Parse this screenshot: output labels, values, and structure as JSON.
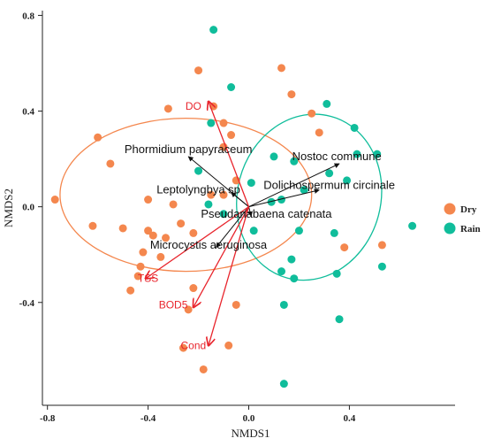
{
  "chart_data": {
    "type": "scatter",
    "xlabel": "NMDS1",
    "ylabel": "NMDS2",
    "xlim": [
      -0.82,
      0.82
    ],
    "ylim": [
      -0.83,
      0.82
    ],
    "x_ticks": [
      -0.8,
      -0.4,
      0.0,
      0.4
    ],
    "x_tick_labels": [
      "-0.8",
      "-0.4",
      "0.0",
      "0.4"
    ],
    "y_ticks": [
      0.8,
      0.4,
      0.0,
      -0.4
    ],
    "y_tick_labels": [
      "0.8",
      "0.4",
      "0.0",
      "-0.4"
    ],
    "grid": false,
    "legend_position": "right",
    "series": [
      {
        "name": "Dry",
        "color": "#f4874e",
        "points": [
          [
            -0.77,
            0.03
          ],
          [
            -0.6,
            0.29
          ],
          [
            -0.55,
            0.18
          ],
          [
            -0.62,
            -0.08
          ],
          [
            -0.5,
            -0.09
          ],
          [
            -0.4,
            -0.1
          ],
          [
            -0.38,
            -0.12
          ],
          [
            -0.33,
            -0.13
          ],
          [
            -0.42,
            -0.19
          ],
          [
            -0.35,
            -0.21
          ],
          [
            -0.43,
            -0.25
          ],
          [
            -0.44,
            -0.29
          ],
          [
            -0.47,
            -0.35
          ],
          [
            -0.4,
            0.03
          ],
          [
            -0.3,
            0.01
          ],
          [
            -0.27,
            -0.07
          ],
          [
            -0.22,
            -0.11
          ],
          [
            -0.15,
            0.05
          ],
          [
            -0.32,
            0.41
          ],
          [
            -0.2,
            0.57
          ],
          [
            -0.14,
            0.42
          ],
          [
            -0.1,
            0.25
          ],
          [
            -0.1,
            0.35
          ],
          [
            -0.07,
            0.3
          ],
          [
            -0.05,
            0.11
          ],
          [
            -0.22,
            -0.34
          ],
          [
            -0.24,
            -0.43
          ],
          [
            -0.05,
            -0.41
          ],
          [
            -0.08,
            -0.58
          ],
          [
            -0.18,
            -0.68
          ],
          [
            -0.26,
            -0.59
          ],
          [
            -0.1,
            0.05
          ],
          [
            0.13,
            0.58
          ],
          [
            0.17,
            0.47
          ],
          [
            0.25,
            0.39
          ],
          [
            0.28,
            0.31
          ],
          [
            0.38,
            -0.17
          ],
          [
            0.53,
            -0.16
          ]
        ]
      },
      {
        "name": "Rain",
        "color": "#10bd9b",
        "points": [
          [
            -0.14,
            0.74
          ],
          [
            -0.07,
            0.5
          ],
          [
            -0.2,
            0.15
          ],
          [
            -0.15,
            0.35
          ],
          [
            -0.16,
            0.01
          ],
          [
            -0.1,
            -0.03
          ],
          [
            0.01,
            0.1
          ],
          [
            0.02,
            -0.1
          ],
          [
            0.09,
            0.02
          ],
          [
            0.1,
            0.21
          ],
          [
            0.13,
            -0.27
          ],
          [
            0.13,
            0.03
          ],
          [
            0.18,
            0.19
          ],
          [
            0.17,
            -0.22
          ],
          [
            0.18,
            -0.3
          ],
          [
            0.2,
            -0.1
          ],
          [
            0.22,
            0.07
          ],
          [
            0.31,
            0.43
          ],
          [
            0.32,
            0.14
          ],
          [
            0.34,
            -0.11
          ],
          [
            0.35,
            -0.28
          ],
          [
            0.39,
            0.11
          ],
          [
            0.42,
            0.33
          ],
          [
            0.43,
            0.22
          ],
          [
            0.51,
            0.22
          ],
          [
            0.53,
            -0.25
          ],
          [
            0.65,
            -0.08
          ],
          [
            0.14,
            -0.74
          ],
          [
            0.36,
            -0.47
          ],
          [
            0.14,
            -0.41
          ]
        ]
      }
    ],
    "ellipses": [
      {
        "series": "Dry",
        "center": [
          -0.25,
          0.05
        ],
        "radii": [
          0.5,
          0.32
        ],
        "rotation_deg": 0
      },
      {
        "series": "Rain",
        "center": [
          0.24,
          0.04
        ],
        "radii": [
          0.285,
          0.35
        ],
        "rotation_deg": 15
      }
    ],
    "env_vectors": [
      {
        "label": "DO",
        "end": [
          -0.16,
          0.44
        ],
        "label_at": [
          -0.22,
          0.42
        ]
      },
      {
        "label": "TSS",
        "end": [
          -0.41,
          -0.3
        ],
        "label_at": [
          -0.4,
          -0.3
        ]
      },
      {
        "label": "BOD5",
        "end": [
          -0.22,
          -0.42
        ],
        "label_at": [
          -0.3,
          -0.41
        ]
      },
      {
        "label": "Cond",
        "end": [
          -0.16,
          -0.58
        ],
        "label_at": [
          -0.22,
          -0.58
        ]
      }
    ],
    "species_vectors": [
      {
        "label": "Phormidium papyraceum",
        "end": [
          -0.24,
          0.21
        ],
        "label_at": [
          -0.24,
          0.24
        ]
      },
      {
        "label": "Leptolyngbya sp",
        "end": [
          -0.07,
          0.06
        ],
        "label_at": [
          -0.2,
          0.07
        ]
      },
      {
        "label": "Pseudanabaena catenata",
        "end": [
          0.01,
          -0.04
        ],
        "label_at": [
          0.07,
          -0.03
        ]
      },
      {
        "label": "Microcystis aeruginosa",
        "end": [
          -0.13,
          -0.17
        ],
        "label_at": [
          -0.16,
          -0.16
        ]
      },
      {
        "label": "Nostoc commune",
        "end": [
          0.36,
          0.18
        ],
        "label_at": [
          0.35,
          0.21
        ]
      },
      {
        "label": "Dolichospermum circinale",
        "end": [
          0.28,
          0.07
        ],
        "label_at": [
          0.32,
          0.09
        ]
      }
    ]
  }
}
